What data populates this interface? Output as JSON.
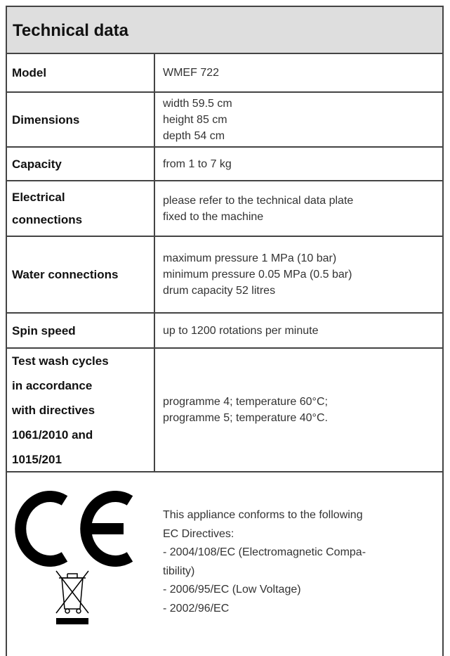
{
  "header": {
    "title": "Technical data"
  },
  "table": {
    "rows": [
      {
        "label": [
          "Model"
        ],
        "value": [
          "WMEF 722"
        ]
      },
      {
        "label": [
          "Dimensions"
        ],
        "value": [
          "width 59.5 cm",
          "height 85 cm",
          "depth 54 cm"
        ]
      },
      {
        "label": [
          "Capacity"
        ],
        "value": [
          "from 1 to 7 kg"
        ]
      },
      {
        "label": [
          "Electrical",
          "connections"
        ],
        "value": [
          "please refer to the technical data plate",
          "fixed to the machine"
        ]
      },
      {
        "label": [
          "Water connections"
        ],
        "value": [
          "maximum pressure 1 MPa (10 bar)",
          "minimum pressure 0.05 MPa (0.5 bar)",
          "drum capacity 52 litres"
        ]
      },
      {
        "label": [
          "Spin speed"
        ],
        "value": [
          "up to 1200 rotations per minute"
        ]
      },
      {
        "label": [
          "Test wash cycles",
          "in accordance",
          "with directives",
          "1061/2010 and",
          "1015/201"
        ],
        "value": [
          "programme 4; temperature 60°C;",
          "programme 5; temperature 40°C."
        ]
      }
    ]
  },
  "compliance": {
    "lines": [
      "This appliance conforms to the following",
      "EC Directives:",
      "- 2004/108/EC (Electromagnetic Compa-",
      "tibility)",
      "- 2006/95/EC (Low Voltage)",
      "- 2002/96/EC"
    ]
  }
}
